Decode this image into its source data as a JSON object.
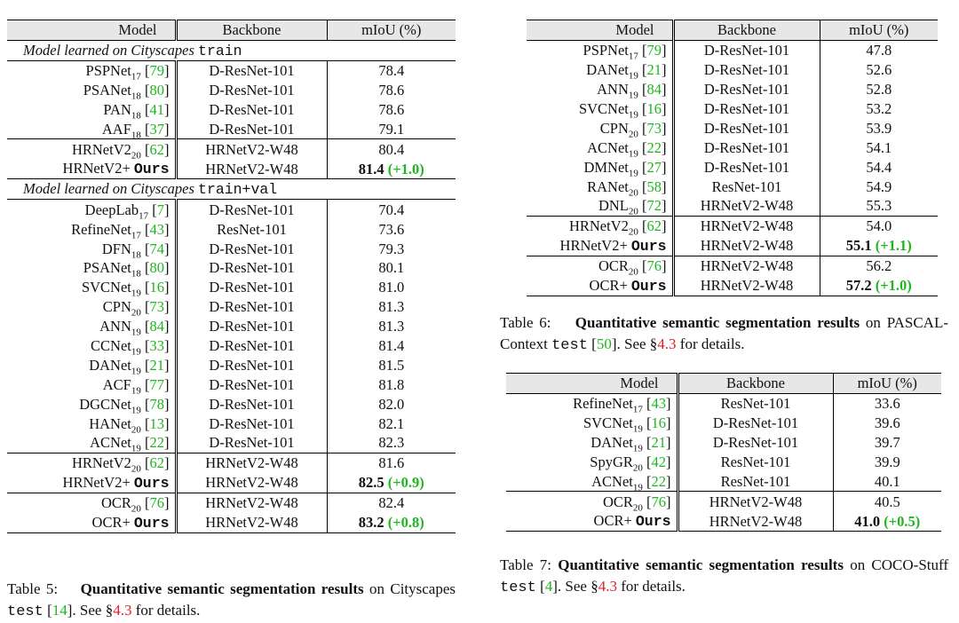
{
  "headers": {
    "model": "Model",
    "backbone": "Backbone",
    "miou": "mIoU (%)"
  },
  "table5": {
    "sections": [
      {
        "label": "Model learned on Cityscapes",
        "split": "train"
      },
      {
        "label": "Model learned on Cityscapes",
        "split": "train+val"
      }
    ],
    "rows_train": [
      {
        "name": "PSPNet",
        "sub": "17",
        "cite": "79",
        "backbone": "D-ResNet-101",
        "miou": "78.4"
      },
      {
        "name": "PSANet",
        "sub": "18",
        "cite": "80",
        "backbone": "D-ResNet-101",
        "miou": "78.6"
      },
      {
        "name": "PAN",
        "sub": "18",
        "cite": "41",
        "backbone": "D-ResNet-101",
        "miou": "78.6"
      },
      {
        "name": "AAF",
        "sub": "18",
        "cite": "37",
        "backbone": "D-ResNet-101",
        "miou": "79.1"
      },
      {
        "name": "HRNetV2",
        "sub": "20",
        "cite": "62",
        "backbone": "HRNetV2-W48",
        "miou": "80.4"
      },
      {
        "name": "HRNetV2+",
        "ours": "Ours",
        "backbone": "HRNetV2-W48",
        "miou": "81.4",
        "gain": "(+1.0)"
      }
    ],
    "rows_trainval": [
      {
        "name": "DeepLab",
        "sub": "17",
        "cite": "7",
        "backbone": "D-ResNet-101",
        "miou": "70.4"
      },
      {
        "name": "RefineNet",
        "sub": "17",
        "cite": "43",
        "backbone": "ResNet-101",
        "miou": "73.6"
      },
      {
        "name": "DFN",
        "sub": "18",
        "cite": "74",
        "backbone": "D-ResNet-101",
        "miou": "79.3"
      },
      {
        "name": "PSANet",
        "sub": "18",
        "cite": "80",
        "backbone": "D-ResNet-101",
        "miou": "80.1"
      },
      {
        "name": "SVCNet",
        "sub": "19",
        "cite": "16",
        "backbone": "D-ResNet-101",
        "miou": "81.0"
      },
      {
        "name": "CPN",
        "sub": "20",
        "cite": "73",
        "backbone": "D-ResNet-101",
        "miou": "81.3"
      },
      {
        "name": "ANN",
        "sub": "19",
        "cite": "84",
        "backbone": "D-ResNet-101",
        "miou": "81.3"
      },
      {
        "name": "CCNet",
        "sub": "19",
        "cite": "33",
        "backbone": "D-ResNet-101",
        "miou": "81.4"
      },
      {
        "name": "DANet",
        "sub": "19",
        "cite": "21",
        "backbone": "D-ResNet-101",
        "miou": "81.5"
      },
      {
        "name": "ACF",
        "sub": "19",
        "cite": "77",
        "backbone": "D-ResNet-101",
        "miou": "81.8"
      },
      {
        "name": "DGCNet",
        "sub": "19",
        "cite": "78",
        "backbone": "D-ResNet-101",
        "miou": "82.0"
      },
      {
        "name": "HANet",
        "sub": "20",
        "cite": "13",
        "backbone": "D-ResNet-101",
        "miou": "82.1"
      },
      {
        "name": "ACNet",
        "sub": "19",
        "cite": "22",
        "backbone": "D-ResNet-101",
        "miou": "82.3"
      },
      {
        "name": "HRNetV2",
        "sub": "20",
        "cite": "62",
        "backbone": "HRNetV2-W48",
        "miou": "81.6"
      },
      {
        "name": "HRNetV2+",
        "ours": "Ours",
        "backbone": "HRNetV2-W48",
        "miou": "82.5",
        "gain": "(+0.9)"
      },
      {
        "name": "OCR",
        "sub": "20",
        "cite": "76",
        "backbone": "HRNetV2-W48",
        "miou": "82.4"
      },
      {
        "name": "OCR+",
        "ours": "Ours",
        "backbone": "HRNetV2-W48",
        "miou": "83.2",
        "gain": "(+0.8)"
      }
    ],
    "caption": {
      "prefix": "Table 5:",
      "bold": "Quantitative semantic segmentation results",
      "text1": " on Cityscapes ",
      "split": "test",
      "text2": " [",
      "cite": "14",
      "text3": "]. See §",
      "sec": "4.3",
      "text4": " for details."
    }
  },
  "table6": {
    "rows": [
      {
        "name": "PSPNet",
        "sub": "17",
        "cite": "79",
        "backbone": "D-ResNet-101",
        "miou": "47.8"
      },
      {
        "name": "DANet",
        "sub": "19",
        "cite": "21",
        "backbone": "D-ResNet-101",
        "miou": "52.6"
      },
      {
        "name": "ANN",
        "sub": "19",
        "cite": "84",
        "backbone": "D-ResNet-101",
        "miou": "52.8"
      },
      {
        "name": "SVCNet",
        "sub": "19",
        "cite": "16",
        "backbone": "D-ResNet-101",
        "miou": "53.2"
      },
      {
        "name": "CPN",
        "sub": "20",
        "cite": "73",
        "backbone": "D-ResNet-101",
        "miou": "53.9"
      },
      {
        "name": "ACNet",
        "sub": "19",
        "cite": "22",
        "backbone": "D-ResNet-101",
        "miou": "54.1"
      },
      {
        "name": "DMNet",
        "sub": "19",
        "cite": "27",
        "backbone": "D-ResNet-101",
        "miou": "54.4"
      },
      {
        "name": "RANet",
        "sub": "20",
        "cite": "58",
        "backbone": "ResNet-101",
        "miou": "54.9"
      },
      {
        "name": "DNL",
        "sub": "20",
        "cite": "72",
        "backbone": "HRNetV2-W48",
        "miou": "55.3"
      },
      {
        "name": "HRNetV2",
        "sub": "20",
        "cite": "62",
        "backbone": "HRNetV2-W48",
        "miou": "54.0"
      },
      {
        "name": "HRNetV2+",
        "ours": "Ours",
        "backbone": "HRNetV2-W48",
        "miou": "55.1",
        "gain": "(+1.1)"
      },
      {
        "name": "OCR",
        "sub": "20",
        "cite": "76",
        "backbone": "HRNetV2-W48",
        "miou": "56.2"
      },
      {
        "name": "OCR+",
        "ours": "Ours",
        "backbone": "HRNetV2-W48",
        "miou": "57.2",
        "gain": "(+1.0)"
      }
    ],
    "caption": {
      "prefix": "Table 6:",
      "bold": "Quantitative semantic segmentation results",
      "text1": " on PASCAL-Context ",
      "split": "test",
      "text2": " [",
      "cite": "50",
      "text3": "]. See §",
      "sec": "4.3",
      "text4": " for details."
    }
  },
  "table7": {
    "rows": [
      {
        "name": "RefineNet",
        "sub": "17",
        "cite": "43",
        "backbone": "ResNet-101",
        "miou": "33.6"
      },
      {
        "name": "SVCNet",
        "sub": "19",
        "cite": "16",
        "backbone": "D-ResNet-101",
        "miou": "39.6"
      },
      {
        "name": "DANet",
        "sub": "19",
        "cite": "21",
        "backbone": "D-ResNet-101",
        "miou": "39.7"
      },
      {
        "name": "SpyGR",
        "sub": "20",
        "cite": "42",
        "backbone": "ResNet-101",
        "miou": "39.9"
      },
      {
        "name": "ACNet",
        "sub": "19",
        "cite": "22",
        "backbone": "ResNet-101",
        "miou": "40.1"
      },
      {
        "name": "OCR",
        "sub": "20",
        "cite": "76",
        "backbone": "HRNetV2-W48",
        "miou": "40.5"
      },
      {
        "name": "OCR+",
        "ours": "Ours",
        "backbone": "HRNetV2-W48",
        "miou": "41.0",
        "gain": "(+0.5)"
      }
    ],
    "caption": {
      "prefix": "Table 7:",
      "bold": "Quantitative semantic segmentation results",
      "text1": " on COCO-Stuff ",
      "split": "test",
      "text2": " [",
      "cite": "4",
      "text3": "]. See §",
      "sec": "4.3",
      "text4": " for details."
    }
  },
  "colors": {
    "citation": "#1fb51f",
    "section_ref": "#e0202a",
    "header_bg": "#e7e7e7"
  }
}
